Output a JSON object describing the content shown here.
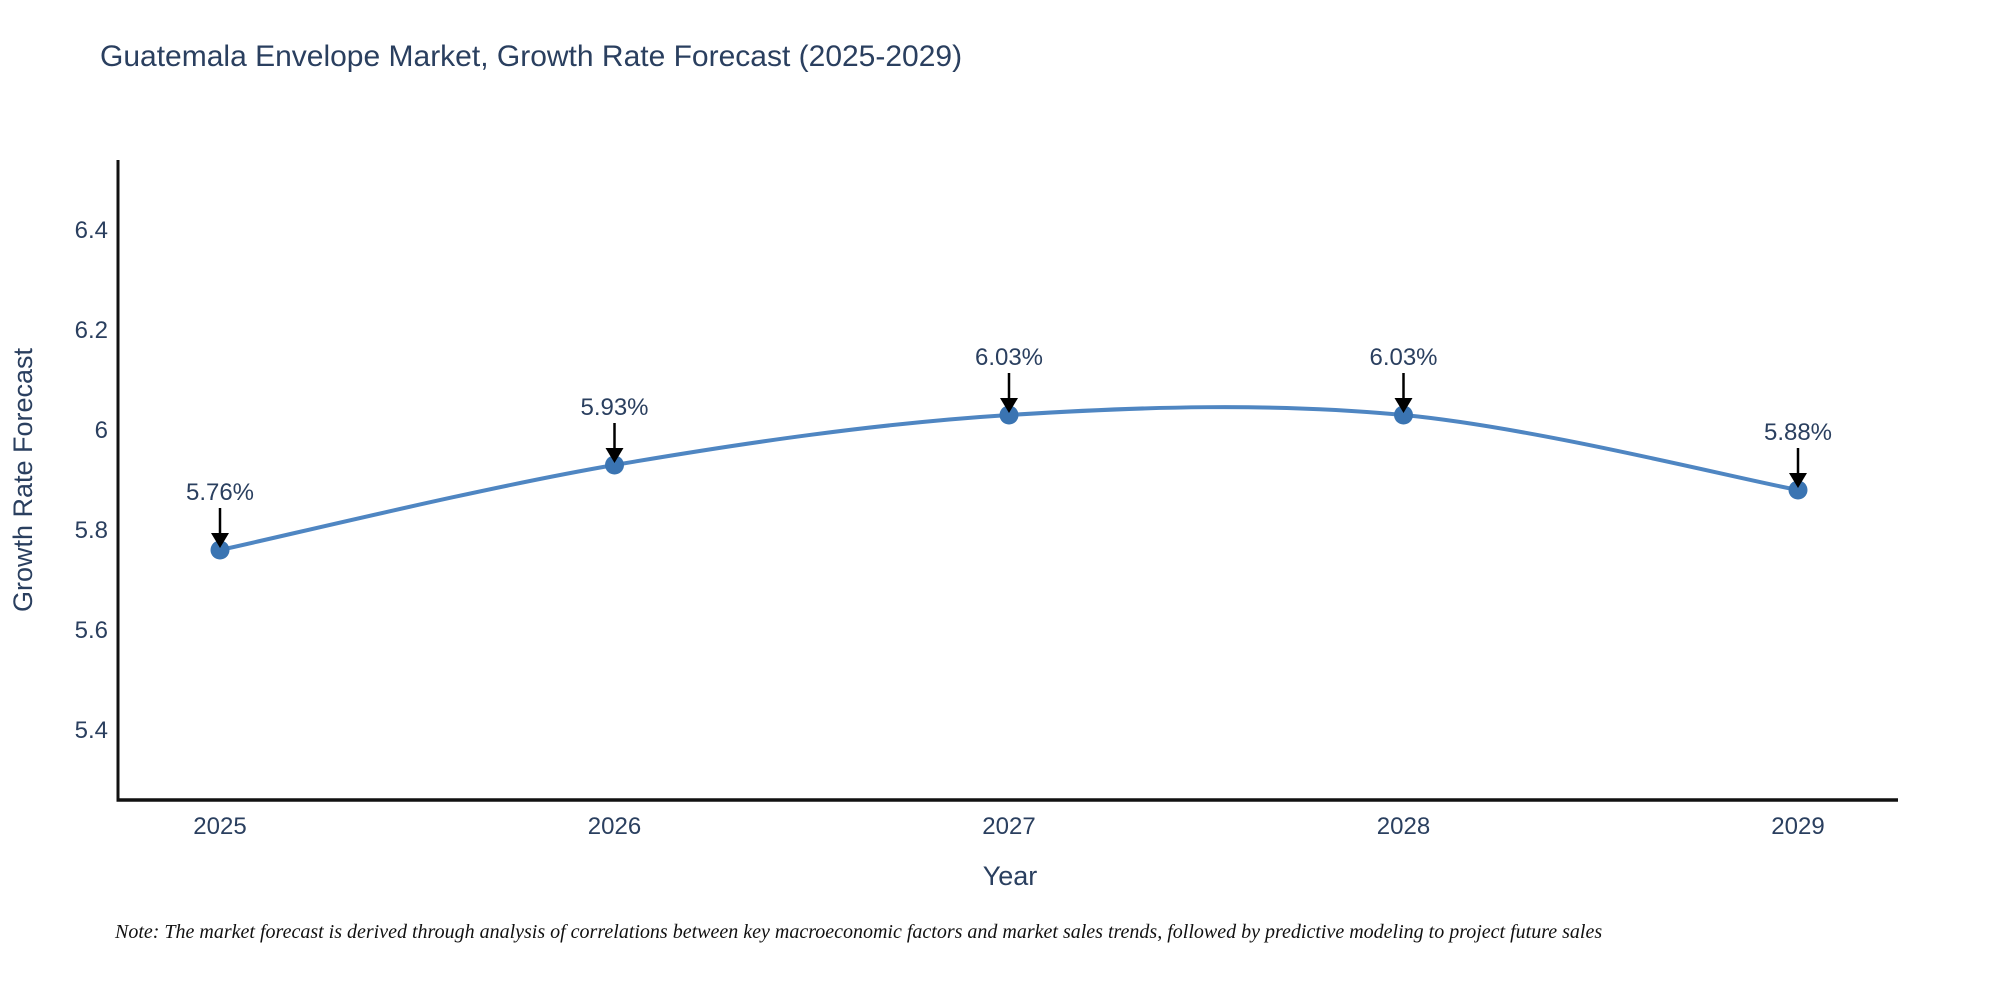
{
  "header": {
    "title": "Guatemala Envelope Market, Growth Rate Forecast (2025-2029)"
  },
  "footer": {
    "note": "Note: The market forecast is derived through analysis of correlations between key macroeconomic factors and market sales trends, followed by predictive modeling to project future sales"
  },
  "colors": {
    "title_text": "#2a3f5f",
    "tick_text": "#2a3f5f",
    "axis_line": "#111111",
    "line": "#4f86c2",
    "marker": "#3a74b2",
    "arrow": "#000000",
    "note_text": "#111111",
    "background": "#ffffff"
  },
  "chart_data": {
    "type": "line",
    "title": "Guatemala Envelope Market, Growth Rate Forecast (2025-2029)",
    "xlabel": "Year",
    "ylabel": "Growth Rate Forecast",
    "x": [
      "2025",
      "2026",
      "2027",
      "2028",
      "2029"
    ],
    "values": [
      5.76,
      5.93,
      6.03,
      6.03,
      5.88
    ],
    "point_labels": [
      "5.76%",
      "5.93%",
      "6.03%",
      "6.03%",
      "5.88%"
    ],
    "ylim": [
      5.26,
      6.54
    ],
    "yticks": [
      5.4,
      5.6,
      5.8,
      6.0,
      6.2,
      6.4
    ],
    "ytick_labels": [
      "5.4",
      "5.6",
      "5.8",
      "6",
      "6.2",
      "6.4"
    ],
    "line_shape": "spline",
    "grid": false,
    "legend_visible": false,
    "annotation_style": "value-label-with-down-arrow"
  }
}
